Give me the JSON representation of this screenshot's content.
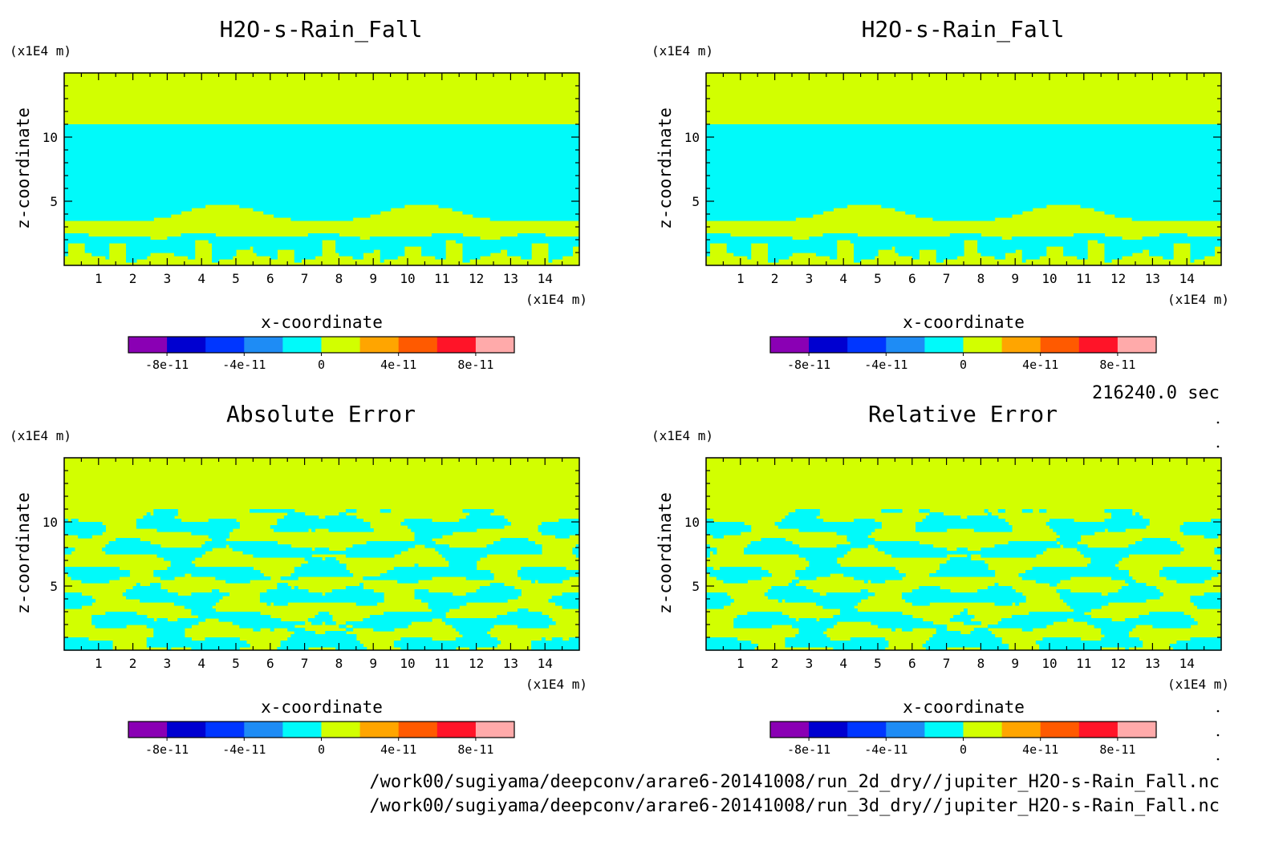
{
  "chart_data": [
    {
      "type": "heatmap",
      "title": "H2O-s-Rain_Fall",
      "xlabel": "x-coordinate",
      "ylabel": "z-coordinate",
      "x_unit": "(x1E4 m)",
      "y_unit": "(x1E4 m)",
      "xlim": [
        0,
        15
      ],
      "ylim": [
        0,
        15
      ],
      "x_ticks": [
        "1",
        "2",
        "3",
        "4",
        "5",
        "6",
        "7",
        "8",
        "9",
        "10",
        "11",
        "12",
        "13",
        "14"
      ],
      "y_ticks": [
        "5",
        "10"
      ],
      "pattern": "field",
      "colorbar": {
        "levels": [
          -1e-10,
          -8e-11,
          -6e-11,
          -4e-11,
          -2e-11,
          0,
          2e-11,
          4e-11,
          6e-11,
          8e-11,
          1e-10
        ],
        "colors": [
          "#8a00b4",
          "#0000d0",
          "#0036ff",
          "#1e8cf5",
          "#00fafa",
          "#d2ff00",
          "#ffa500",
          "#ff5a00",
          "#ff1428",
          "#ffaaaa"
        ],
        "tick_labels": [
          "-8e-11",
          "-4e-11",
          "0",
          "4e-11",
          "8e-11"
        ]
      }
    },
    {
      "type": "heatmap",
      "title": "H2O-s-Rain_Fall",
      "xlabel": "x-coordinate",
      "ylabel": "z-coordinate",
      "x_unit": "(x1E4 m)",
      "y_unit": "(x1E4 m)",
      "xlim": [
        0,
        15
      ],
      "ylim": [
        0,
        15
      ],
      "x_ticks": [
        "1",
        "2",
        "3",
        "4",
        "5",
        "6",
        "7",
        "8",
        "9",
        "10",
        "11",
        "12",
        "13",
        "14"
      ],
      "y_ticks": [
        "5",
        "10"
      ],
      "pattern": "field",
      "colorbar": {
        "levels": [
          -1e-10,
          -8e-11,
          -6e-11,
          -4e-11,
          -2e-11,
          0,
          2e-11,
          4e-11,
          6e-11,
          8e-11,
          1e-10
        ],
        "colors": [
          "#8a00b4",
          "#0000d0",
          "#0036ff",
          "#1e8cf5",
          "#00fafa",
          "#d2ff00",
          "#ffa500",
          "#ff5a00",
          "#ff1428",
          "#ffaaaa"
        ],
        "tick_labels": [
          "-8e-11",
          "-4e-11",
          "0",
          "4e-11",
          "8e-11"
        ]
      }
    },
    {
      "type": "heatmap",
      "title": "Absolute Error",
      "xlabel": "x-coordinate",
      "ylabel": "z-coordinate",
      "x_unit": "(x1E4 m)",
      "y_unit": "(x1E4 m)",
      "xlim": [
        0,
        15
      ],
      "ylim": [
        0,
        15
      ],
      "x_ticks": [
        "1",
        "2",
        "3",
        "4",
        "5",
        "6",
        "7",
        "8",
        "9",
        "10",
        "11",
        "12",
        "13",
        "14"
      ],
      "y_ticks": [
        "5",
        "10"
      ],
      "pattern": "error",
      "colorbar": {
        "levels": [
          -1e-10,
          -8e-11,
          -6e-11,
          -4e-11,
          -2e-11,
          0,
          2e-11,
          4e-11,
          6e-11,
          8e-11,
          1e-10
        ],
        "colors": [
          "#8a00b4",
          "#0000d0",
          "#0036ff",
          "#1e8cf5",
          "#00fafa",
          "#d2ff00",
          "#ffa500",
          "#ff5a00",
          "#ff1428",
          "#ffaaaa"
        ],
        "tick_labels": [
          "-8e-11",
          "-4e-11",
          "0",
          "4e-11",
          "8e-11"
        ]
      }
    },
    {
      "type": "heatmap",
      "title": "Relative Error",
      "xlabel": "x-coordinate",
      "ylabel": "z-coordinate",
      "x_unit": "(x1E4 m)",
      "y_unit": "(x1E4 m)",
      "xlim": [
        0,
        15
      ],
      "ylim": [
        0,
        15
      ],
      "x_ticks": [
        "1",
        "2",
        "3",
        "4",
        "5",
        "6",
        "7",
        "8",
        "9",
        "10",
        "11",
        "12",
        "13",
        "14"
      ],
      "y_ticks": [
        "5",
        "10"
      ],
      "pattern": "error",
      "colorbar": {
        "levels": [
          -1e-10,
          -8e-11,
          -6e-11,
          -4e-11,
          -2e-11,
          0,
          2e-11,
          4e-11,
          6e-11,
          8e-11,
          1e-10
        ],
        "colors": [
          "#8a00b4",
          "#0000d0",
          "#0036ff",
          "#1e8cf5",
          "#00fafa",
          "#d2ff00",
          "#ffa500",
          "#ff5a00",
          "#ff1428",
          "#ffaaaa"
        ],
        "tick_labels": [
          "-8e-11",
          "-4e-11",
          "0",
          "4e-11",
          "8e-11"
        ]
      }
    }
  ],
  "time_label": "216240.0 sec",
  "file_paths": [
    "/work00/sugiyama/deepconv/arare6-20141008/run_2d_dry//jupiter_H2O-s-Rain_Fall.nc",
    "/work00/sugiyama/deepconv/arare6-20141008/run_3d_dry//jupiter_H2O-s-Rain_Fall.nc"
  ]
}
